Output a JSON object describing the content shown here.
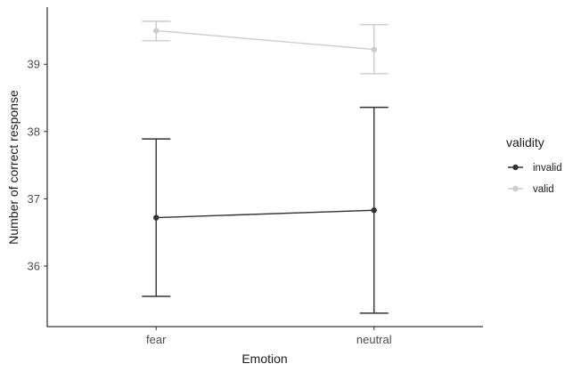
{
  "chart_data": {
    "type": "line",
    "xlabel": "Emotion",
    "ylabel": "Number of correct response",
    "categories": [
      "fear",
      "neutral"
    ],
    "ylim": [
      35.1,
      39.85
    ],
    "yticks": [
      "36",
      "37",
      "38",
      "39"
    ],
    "grid": false,
    "legend": {
      "title": "validity",
      "position": "right"
    },
    "series": [
      {
        "name": "invalid",
        "color": "#333333",
        "values": [
          36.72,
          36.83
        ],
        "error_low": [
          35.55,
          35.3
        ],
        "error_high": [
          37.89,
          38.36
        ]
      },
      {
        "name": "valid",
        "color": "#cccccc",
        "values": [
          39.5,
          39.22
        ],
        "error_low": [
          39.35,
          38.86
        ],
        "error_high": [
          39.64,
          39.59
        ]
      }
    ]
  }
}
